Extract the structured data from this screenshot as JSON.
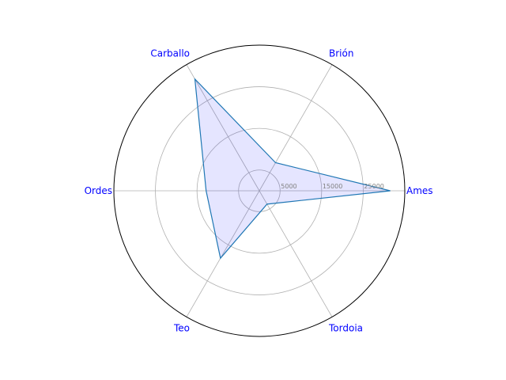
{
  "chart_data": {
    "type": "radar",
    "title": "",
    "categories": [
      "Ames",
      "Brión",
      "Carballo",
      "Ordes",
      "Teo",
      "Tordoia"
    ],
    "series": [
      {
        "values": [
          31500,
          7800,
          31000,
          12800,
          18700,
          3700
        ]
      }
    ],
    "radial_ticks": [
      5000,
      15000,
      25000
    ],
    "radial_range": [
      0,
      35000
    ],
    "grid": true,
    "colors": {
      "line": "#1f77b4",
      "fill": "#0000ff",
      "fill_opacity": 0.1,
      "category_label": "#0000ff",
      "tick_label": "#808080",
      "grid": "#b0b0b0",
      "frame": "#000000"
    }
  }
}
